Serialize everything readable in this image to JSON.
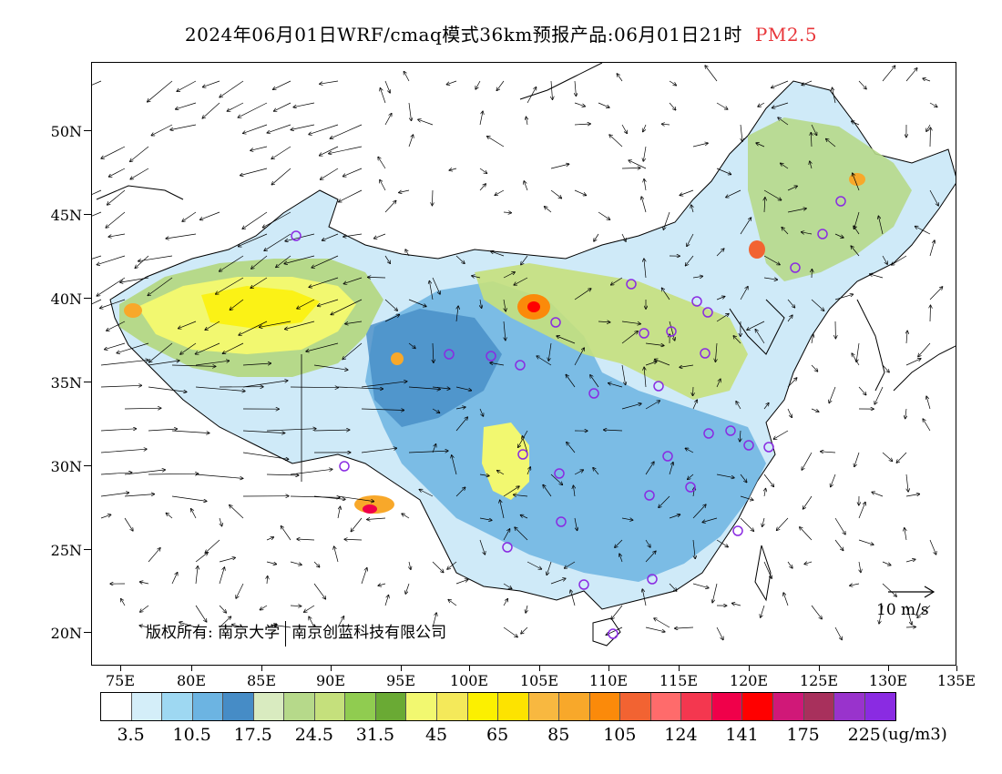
{
  "title": {
    "main": "2024年06月01日WRF/cmaq模式36km预报产品:06月01日21时",
    "variable": "PM2.5",
    "variable_color": "#e8373b"
  },
  "map": {
    "lat_labels": [
      "50N",
      "45N",
      "40N",
      "35N",
      "30N",
      "25N",
      "20N"
    ],
    "lon_labels": [
      "75E",
      "80E",
      "85E",
      "90E",
      "95E",
      "100E",
      "105E",
      "110E",
      "115E",
      "120E",
      "125E",
      "130E",
      "135E"
    ],
    "copyright_parts": [
      "版权所有: 南京大学",
      "南京创蓝科技有限公司"
    ],
    "wind_reference_label": "10 m/s",
    "station_marker_color": "#8a2be2"
  },
  "colorbar": {
    "colors": [
      "#ffffff",
      "#d4eef9",
      "#9ed8f2",
      "#6cb4e2",
      "#468cc6",
      "#d9ebc0",
      "#b6d98a",
      "#c5e07c",
      "#90cc50",
      "#6aaa34",
      "#f2f870",
      "#f4e95a",
      "#fcf000",
      "#fde300",
      "#f8b840",
      "#f8a82a",
      "#fb8a0a",
      "#f26332",
      "#ff6b6b",
      "#f4374f",
      "#f0004a",
      "#ff0000",
      "#d01878",
      "#a8305c",
      "#9933cc",
      "#8a2be2"
    ],
    "labels": [
      "3.5",
      "10.5",
      "17.5",
      "24.5",
      "31.5",
      "45",
      "65",
      "85",
      "105",
      "124",
      "141",
      "175",
      "225"
    ],
    "unit": "(ug/m3)"
  }
}
